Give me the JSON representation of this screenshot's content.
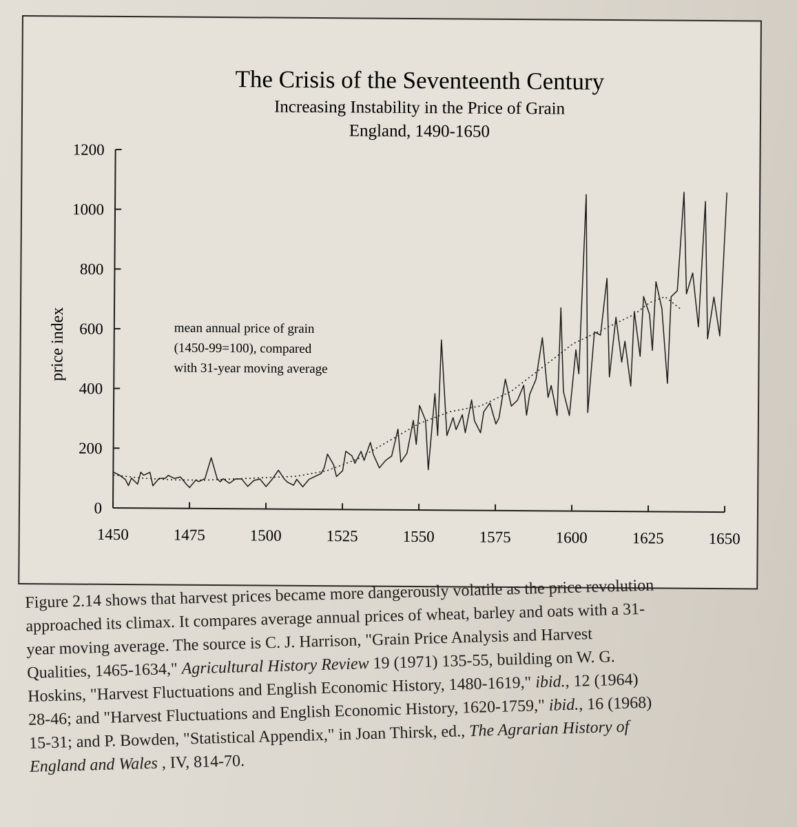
{
  "chart_data": {
    "type": "line",
    "title": "The Crisis of the Seventeenth Century",
    "subtitle_lines": [
      "Increasing Instability in the Price of Grain",
      "England, 1490-1650"
    ],
    "xlabel": "",
    "ylabel": "price index",
    "xlim": [
      1450,
      1650
    ],
    "ylim": [
      0,
      1200
    ],
    "x_ticks": [
      1450,
      1475,
      1500,
      1525,
      1550,
      1575,
      1600,
      1625,
      1650
    ],
    "y_ticks": [
      0,
      200,
      400,
      600,
      800,
      1000,
      1200
    ],
    "annotation_lines": [
      "mean annual price of grain",
      "(1450-99=100), compared",
      "with 31-year moving average"
    ],
    "grid": false,
    "legend": "none",
    "series": [
      {
        "style": "solid",
        "x": [
          1450,
          1452,
          1454,
          1455,
          1456,
          1458,
          1459,
          1460,
          1462,
          1463,
          1465,
          1467,
          1468,
          1470,
          1472,
          1474,
          1475,
          1477,
          1478,
          1480,
          1482,
          1484,
          1485,
          1486,
          1488,
          1490,
          1492,
          1494,
          1496,
          1498,
          1500,
          1502,
          1504,
          1506,
          1507,
          1509,
          1510,
          1512,
          1514,
          1516,
          1518,
          1519,
          1520,
          1522,
          1523,
          1525,
          1526,
          1528,
          1529,
          1531,
          1532,
          1534,
          1535,
          1537,
          1539,
          1541,
          1543,
          1544,
          1546,
          1548,
          1549,
          1550,
          1552,
          1553,
          1555,
          1556,
          1557,
          1559,
          1561,
          1562,
          1564,
          1565,
          1567,
          1568,
          1570,
          1571,
          1573,
          1575,
          1576,
          1578,
          1580,
          1582,
          1584,
          1585,
          1586,
          1588,
          1590,
          1592,
          1593,
          1595,
          1596,
          1597,
          1599,
          1601,
          1602,
          1604,
          1605,
          1607,
          1609,
          1611,
          1612,
          1614,
          1616,
          1617,
          1619,
          1620,
          1622,
          1623,
          1625,
          1626,
          1627,
          1629,
          1631,
          1632,
          1634,
          1636,
          1637,
          1639,
          1641,
          1643,
          1644,
          1646,
          1648,
          1650
        ],
        "y": [
          120,
          110,
          95,
          75,
          100,
          80,
          120,
          110,
          120,
          75,
          100,
          100,
          110,
          100,
          105,
          80,
          70,
          95,
          90,
          100,
          170,
          100,
          90,
          100,
          85,
          100,
          100,
          75,
          95,
          100,
          75,
          100,
          130,
          100,
          90,
          80,
          100,
          75,
          100,
          110,
          120,
          140,
          185,
          150,
          110,
          130,
          195,
          180,
          155,
          195,
          165,
          225,
          185,
          140,
          165,
          180,
          270,
          160,
          190,
          300,
          220,
          350,
          300,
          135,
          390,
          250,
          570,
          250,
          310,
          270,
          320,
          260,
          370,
          300,
          260,
          330,
          360,
          290,
          310,
          440,
          350,
          370,
          420,
          320,
          390,
          440,
          580,
          380,
          420,
          320,
          680,
          400,
          320,
          540,
          460,
          1060,
          330,
          600,
          590,
          780,
          450,
          650,
          500,
          570,
          420,
          670,
          520,
          720,
          660,
          540,
          770,
          680,
          430,
          720,
          740,
          1070,
          730,
          800,
          620,
          1040,
          580,
          720,
          590,
          1070
        ]
      },
      {
        "style": "dotted",
        "x": [
          1450,
          1460,
          1470,
          1480,
          1490,
          1500,
          1510,
          1520,
          1530,
          1540,
          1550,
          1560,
          1570,
          1580,
          1590,
          1600,
          1610,
          1620,
          1625,
          1630,
          1635
        ],
        "y": [
          110,
          100,
          95,
          95,
          100,
          105,
          110,
          130,
          170,
          230,
          290,
          330,
          350,
          400,
          480,
          560,
          610,
          660,
          700,
          720,
          680
        ]
      }
    ]
  },
  "caption": {
    "lines": [
      [
        {
          "t": "Figure 2.14 shows that harvest prices became more dangerously volatile as the price revolution",
          "i": false
        }
      ],
      [
        {
          "t": "approached its climax.  It compares average annual prices of wheat, barley and oats with a 31-",
          "i": false
        }
      ],
      [
        {
          "t": "year moving average.  The source is C. J. Harrison, \"Grain Price Analysis and Harvest",
          "i": false
        }
      ],
      [
        {
          "t": "Qualities, 1465-1634,\" ",
          "i": false
        },
        {
          "t": "Agricultural History Review",
          "i": true
        },
        {
          "t": " 19 (1971) 135-55, building on W. G.",
          "i": false
        }
      ],
      [
        {
          "t": "Hoskins, \"Harvest Fluctuations and English Economic History, 1480-1619,\" ",
          "i": false
        },
        {
          "t": "ibid.",
          "i": true
        },
        {
          "t": ", 12 (1964)",
          "i": false
        }
      ],
      [
        {
          "t": "28-46; and \"Harvest Fluctuations and English Economic History, 1620-1759,\" ",
          "i": false
        },
        {
          "t": "ibid.",
          "i": true
        },
        {
          "t": ", 16 (1968)",
          "i": false
        }
      ],
      [
        {
          "t": "15-31; and P. Bowden, \"Statistical Appendix,\" in Joan Thirsk, ed., ",
          "i": false
        },
        {
          "t": "The Agrarian History of",
          "i": true
        }
      ],
      [
        {
          "t": "England and Wales",
          "i": true
        },
        {
          "t": " , IV, 814-70.",
          "i": false
        }
      ]
    ]
  }
}
